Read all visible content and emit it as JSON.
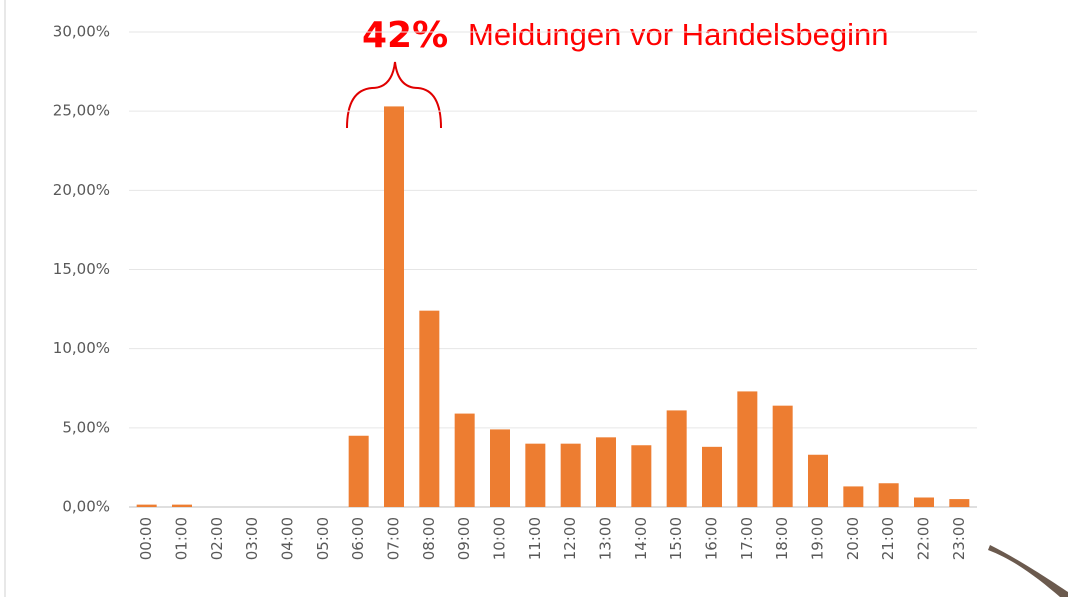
{
  "chart_data": {
    "type": "bar",
    "annotations": [
      "42%",
      "Meldungen vor Handelsbeginn"
    ],
    "categories": [
      "00:00",
      "01:00",
      "02:00",
      "03:00",
      "04:00",
      "05:00",
      "06:00",
      "07:00",
      "08:00",
      "09:00",
      "10:00",
      "11:00",
      "12:00",
      "13:00",
      "14:00",
      "15:00",
      "16:00",
      "17:00",
      "18:00",
      "19:00",
      "20:00",
      "21:00",
      "22:00",
      "23:00"
    ],
    "values": [
      0.15,
      0.15,
      0,
      0,
      0,
      0,
      4.5,
      25.3,
      12.4,
      5.9,
      4.9,
      4.0,
      4.0,
      4.4,
      3.9,
      6.1,
      3.8,
      7.3,
      6.4,
      3.3,
      1.3,
      1.5,
      0.6,
      0.5
    ],
    "color": "#ed7d31",
    "ylim": [
      0,
      30
    ],
    "yticks": [
      {
        "value": 0,
        "label": "0,00%"
      },
      {
        "value": 5,
        "label": "5,00%"
      },
      {
        "value": 10,
        "label": "10,00%"
      },
      {
        "value": 15,
        "label": "15,00%"
      },
      {
        "value": 20,
        "label": "20,00%"
      },
      {
        "value": 25,
        "label": "25,00%"
      },
      {
        "value": 30,
        "label": "30,00%"
      }
    ],
    "grid": true
  }
}
